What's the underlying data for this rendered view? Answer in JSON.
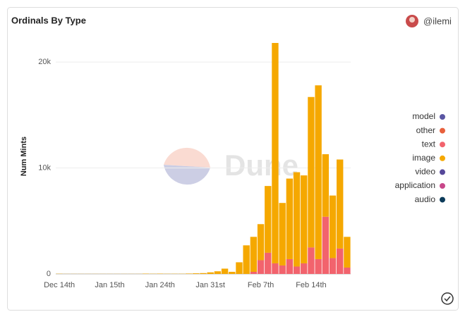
{
  "chart_data": {
    "type": "stacked_bar",
    "title": "Ordinals By Type",
    "author": "@ilemi",
    "watermark": "Dune",
    "ylabel": "Num Mints",
    "categories": [
      "Dec 14th",
      null,
      null,
      null,
      null,
      null,
      null,
      "Jan 15th",
      null,
      null,
      null,
      null,
      null,
      null,
      "Jan 24th",
      null,
      null,
      null,
      null,
      null,
      null,
      "Jan 31st",
      null,
      null,
      null,
      null,
      null,
      null,
      "Feb 7th",
      null,
      null,
      null,
      null,
      null,
      null,
      "Feb 14th",
      null,
      null,
      null,
      null,
      null
    ],
    "series": [
      {
        "name": "model",
        "color": "#5a56a3",
        "values": [
          0,
          0,
          0,
          0,
          0,
          0,
          0,
          0,
          0,
          0,
          0,
          0,
          0,
          0,
          0,
          0,
          0,
          0,
          0,
          0,
          0,
          0,
          0,
          0,
          0,
          0,
          0,
          0,
          0,
          0,
          0,
          0,
          0,
          0,
          0,
          0,
          0,
          0,
          0,
          0,
          0
        ]
      },
      {
        "name": "other",
        "color": "#e8603c",
        "values": [
          0,
          0,
          0,
          0,
          0,
          0,
          0,
          0,
          0,
          0,
          0,
          0,
          0,
          0,
          0,
          0,
          0,
          0,
          0,
          0,
          0,
          0,
          0,
          0,
          0,
          0,
          0,
          0,
          0,
          0,
          0,
          0,
          0,
          0,
          0,
          0,
          0,
          0,
          0,
          0,
          0
        ]
      },
      {
        "name": "text",
        "color": "#f2636d",
        "values": [
          0,
          0,
          0,
          0,
          0,
          0,
          0,
          0,
          0,
          0,
          0,
          0,
          0,
          0,
          0,
          0,
          0,
          0,
          0,
          0,
          0,
          0,
          0,
          0,
          0,
          0,
          0,
          200,
          1300,
          2000,
          1000,
          800,
          1400,
          700,
          1000,
          2500,
          1400,
          5400,
          1500,
          2400,
          600
        ]
      },
      {
        "name": "image",
        "color": "#f5a800",
        "values": [
          20,
          10,
          10,
          10,
          10,
          10,
          10,
          10,
          10,
          10,
          10,
          10,
          30,
          20,
          30,
          20,
          20,
          20,
          40,
          60,
          80,
          150,
          250,
          500,
          200,
          1100,
          2700,
          3300,
          3400,
          6300,
          20800,
          5900,
          7600,
          8900,
          8300,
          14200,
          16400,
          5900,
          5900,
          8400,
          2900
        ]
      },
      {
        "name": "video",
        "color": "#56489a",
        "values": [
          0,
          0,
          0,
          0,
          0,
          0,
          0,
          0,
          0,
          0,
          0,
          0,
          0,
          0,
          0,
          0,
          0,
          0,
          0,
          0,
          0,
          0,
          0,
          0,
          0,
          0,
          0,
          0,
          0,
          0,
          0,
          0,
          0,
          0,
          0,
          0,
          0,
          0,
          0,
          0,
          0
        ]
      },
      {
        "name": "application",
        "color": "#c8478a",
        "values": [
          0,
          0,
          0,
          0,
          0,
          0,
          0,
          0,
          0,
          0,
          0,
          0,
          0,
          0,
          0,
          0,
          0,
          0,
          0,
          0,
          0,
          0,
          0,
          0,
          0,
          0,
          0,
          0,
          0,
          0,
          0,
          0,
          0,
          0,
          0,
          0,
          0,
          0,
          0,
          0,
          0
        ]
      },
      {
        "name": "audio",
        "color": "#0c3b5a",
        "values": [
          0,
          0,
          0,
          0,
          0,
          0,
          0,
          0,
          0,
          0,
          0,
          0,
          0,
          0,
          0,
          0,
          0,
          0,
          0,
          0,
          0,
          0,
          0,
          0,
          0,
          0,
          0,
          0,
          0,
          0,
          0,
          0,
          0,
          0,
          0,
          0,
          0,
          0,
          0,
          0,
          0
        ]
      }
    ],
    "ylim": [
      0,
      22000
    ],
    "yticks": [
      0,
      {
        "value": 10000,
        "label": "10k"
      },
      {
        "value": 20000,
        "label": "20k"
      }
    ],
    "grid": true,
    "legend": "right"
  }
}
